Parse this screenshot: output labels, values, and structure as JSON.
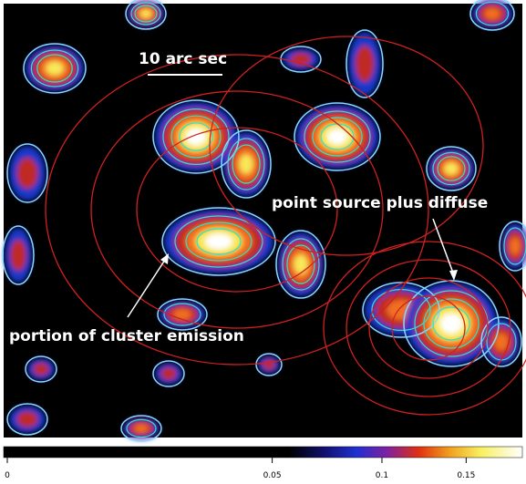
{
  "image": {
    "scale_bar_label": "10 arc sec",
    "annotations": [
      "point source plus diffuse",
      "portion of cluster emission"
    ]
  },
  "colorbar": {
    "scale": "sqrt",
    "lim": [
      0,
      0.187
    ],
    "ticks": [
      0,
      0.05,
      0.1,
      0.15
    ]
  }
}
